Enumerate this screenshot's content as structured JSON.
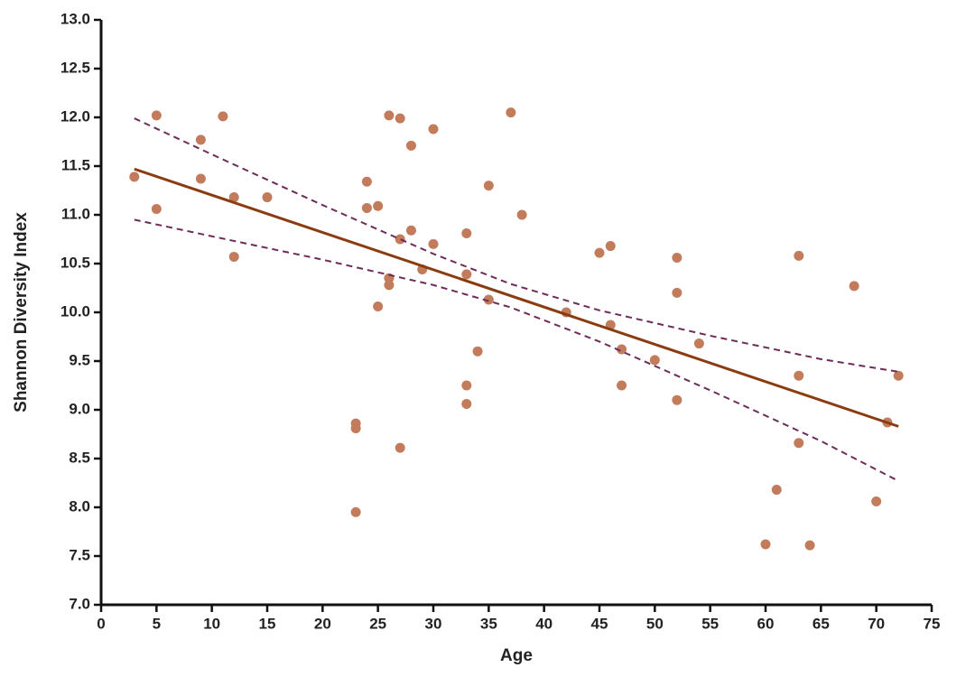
{
  "chart_data": {
    "type": "scatter",
    "x_label": "Age",
    "y_label": "Shannon Diversity Index",
    "xlim": [
      0,
      75
    ],
    "ylim": [
      7.0,
      13.0
    ],
    "xticks": [
      0,
      5,
      10,
      15,
      20,
      25,
      30,
      35,
      40,
      45,
      50,
      55,
      60,
      65,
      70,
      75
    ],
    "yticks": [
      {
        "value": 7.0,
        "label": "7.0"
      },
      7.5,
      {
        "value": 8.0,
        "label": "8.0"
      },
      8.5,
      {
        "value": 9.0,
        "label": "9.0"
      },
      9.5,
      {
        "value": 10.0,
        "label": "10.0"
      },
      10.5,
      {
        "value": 11.0,
        "label": "11.0"
      },
      11.5,
      {
        "value": 12.0,
        "label": "12.0"
      },
      12.5,
      {
        "value": 13.0,
        "label": "13.0"
      }
    ],
    "series": [
      {
        "style": "points",
        "color": "#c27c5c",
        "x": [
          3,
          5,
          5,
          9,
          9,
          11,
          12,
          12,
          15,
          23,
          23,
          23,
          24,
          24,
          25,
          25,
          26,
          26,
          26,
          27,
          27,
          27,
          28,
          28,
          29,
          30,
          30,
          33,
          33,
          33,
          33,
          34,
          35,
          35,
          37,
          38,
          42,
          45,
          46,
          46,
          47,
          47,
          50,
          52,
          52,
          52,
          54,
          60,
          61,
          63,
          63,
          63,
          64,
          68,
          70,
          71,
          72
        ],
        "values": [
          11.39,
          12.02,
          11.06,
          11.77,
          11.37,
          12.01,
          11.18,
          10.57,
          11.18,
          8.86,
          8.81,
          7.95,
          11.34,
          11.07,
          11.09,
          10.06,
          10.35,
          10.28,
          12.02,
          11.99,
          10.75,
          8.61,
          11.71,
          10.84,
          10.44,
          11.88,
          10.7,
          10.81,
          10.39,
          9.25,
          9.06,
          9.6,
          11.3,
          10.13,
          12.05,
          11.0,
          10.0,
          10.61,
          10.68,
          9.87,
          9.62,
          9.25,
          9.51,
          10.56,
          10.2,
          9.1,
          9.68,
          7.62,
          8.18,
          10.58,
          9.35,
          8.66,
          7.61,
          10.27,
          8.06,
          8.87,
          9.35
        ]
      },
      {
        "style": "solid",
        "color": "#8a3c10",
        "x": [
          3,
          72
        ],
        "values": [
          11.47,
          8.83
        ]
      },
      {
        "style": "dashed",
        "color": "#6e2c5a",
        "x": [
          3,
          10,
          20,
          30,
          37,
          45,
          55,
          65,
          72
        ],
        "values": [
          11.99,
          11.62,
          11.1,
          10.6,
          10.29,
          10.02,
          9.76,
          9.52,
          9.39
        ]
      },
      {
        "style": "dashed",
        "color": "#6e2c5a",
        "x": [
          3,
          10,
          20,
          30,
          37,
          45,
          55,
          65,
          72
        ],
        "values": [
          10.95,
          10.78,
          10.54,
          10.28,
          10.05,
          9.7,
          9.2,
          8.68,
          8.27
        ]
      }
    ]
  }
}
